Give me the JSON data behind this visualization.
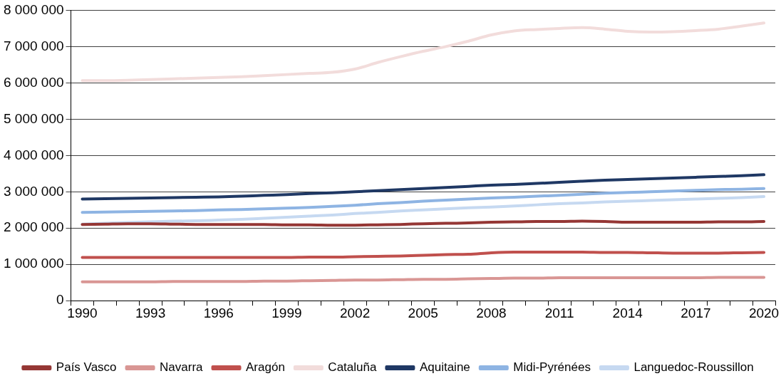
{
  "chart_data": {
    "type": "line",
    "categories": [
      "1990",
      null,
      null,
      "1993",
      null,
      null,
      "1996",
      null,
      null,
      "1999",
      null,
      null,
      "2002",
      null,
      null,
      "2005",
      null,
      null,
      "2008",
      null,
      null,
      "2011",
      null,
      null,
      "2014",
      null,
      null,
      "2017",
      null,
      null,
      "2020"
    ],
    "series": [
      {
        "name": "País Vasco",
        "color": "#953735",
        "values": [
          2100000,
          2110000,
          2120000,
          2120000,
          2110000,
          2100000,
          2100000,
          2100000,
          2100000,
          2090000,
          2090000,
          2080000,
          2080000,
          2090000,
          2100000,
          2120000,
          2130000,
          2140000,
          2160000,
          2170000,
          2180000,
          2180000,
          2190000,
          2180000,
          2160000,
          2160000,
          2160000,
          2160000,
          2170000,
          2170000,
          2180000
        ]
      },
      {
        "name": "Navarra",
        "color": "#d99694",
        "values": [
          520000,
          520000,
          520000,
          520000,
          530000,
          530000,
          530000,
          530000,
          540000,
          540000,
          550000,
          560000,
          570000,
          570000,
          580000,
          590000,
          590000,
          600000,
          610000,
          620000,
          620000,
          630000,
          630000,
          630000,
          630000,
          630000,
          630000,
          630000,
          640000,
          640000,
          640000
        ]
      },
      {
        "name": "Aragón",
        "color": "#c0504d",
        "values": [
          1190000,
          1190000,
          1190000,
          1190000,
          1190000,
          1190000,
          1190000,
          1190000,
          1190000,
          1190000,
          1200000,
          1200000,
          1210000,
          1220000,
          1230000,
          1250000,
          1270000,
          1280000,
          1320000,
          1340000,
          1340000,
          1340000,
          1340000,
          1330000,
          1330000,
          1320000,
          1310000,
          1310000,
          1310000,
          1320000,
          1330000
        ]
      },
      {
        "name": "Cataluña",
        "color": "#f2dcdb",
        "values": [
          6060000,
          6060000,
          6070000,
          6090000,
          6110000,
          6130000,
          6150000,
          6170000,
          6200000,
          6230000,
          6260000,
          6290000,
          6380000,
          6560000,
          6720000,
          6870000,
          7000000,
          7150000,
          7320000,
          7430000,
          7470000,
          7500000,
          7520000,
          7480000,
          7420000,
          7400000,
          7410000,
          7440000,
          7480000,
          7560000,
          7650000
        ]
      },
      {
        "name": "Aquitaine",
        "color": "#1f3864",
        "values": [
          2800000,
          2810000,
          2820000,
          2830000,
          2840000,
          2850000,
          2860000,
          2880000,
          2900000,
          2920000,
          2950000,
          2970000,
          3000000,
          3030000,
          3060000,
          3090000,
          3120000,
          3150000,
          3180000,
          3200000,
          3230000,
          3260000,
          3290000,
          3320000,
          3340000,
          3360000,
          3380000,
          3400000,
          3420000,
          3440000,
          3470000
        ]
      },
      {
        "name": "Midi-Pyrénées",
        "color": "#8eb4e3",
        "values": [
          2430000,
          2440000,
          2450000,
          2460000,
          2470000,
          2480000,
          2500000,
          2510000,
          2530000,
          2550000,
          2570000,
          2600000,
          2630000,
          2670000,
          2700000,
          2740000,
          2770000,
          2800000,
          2830000,
          2850000,
          2880000,
          2900000,
          2930000,
          2960000,
          2980000,
          3000000,
          3020000,
          3040000,
          3060000,
          3070000,
          3090000
        ]
      },
      {
        "name": "Languedoc-Roussillon",
        "color": "#c6d9f1",
        "values": [
          2110000,
          2130000,
          2150000,
          2170000,
          2190000,
          2200000,
          2220000,
          2240000,
          2270000,
          2300000,
          2330000,
          2360000,
          2400000,
          2430000,
          2470000,
          2500000,
          2530000,
          2560000,
          2580000,
          2610000,
          2640000,
          2670000,
          2690000,
          2720000,
          2740000,
          2760000,
          2780000,
          2800000,
          2820000,
          2840000,
          2870000
        ]
      }
    ],
    "ylim": [
      0,
      8000000
    ],
    "yticks": [
      0,
      {
        "value": 1000000,
        "label": "1 000 000"
      },
      {
        "value": 2000000,
        "label": "2 000 000"
      },
      {
        "value": 3000000,
        "label": "3 000 000"
      },
      {
        "value": 4000000,
        "label": "4 000 000"
      },
      {
        "value": 5000000,
        "label": "5 000 000"
      },
      {
        "value": 6000000,
        "label": "6 000 000"
      },
      {
        "value": 7000000,
        "label": "7 000 000"
      },
      {
        "value": 8000000,
        "label": "8 000 000"
      }
    ],
    "grid": "y",
    "legend": "bottom",
    "marker": "none",
    "line_style": "solid"
  }
}
